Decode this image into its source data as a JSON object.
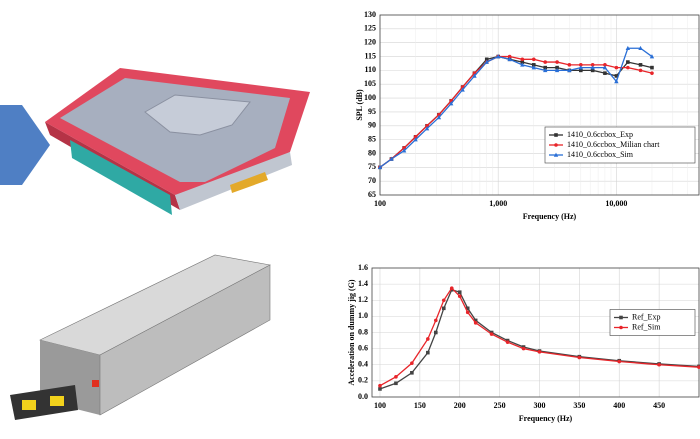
{
  "chart_data": [
    {
      "type": "line",
      "xlabel": "Frequency (Hz)",
      "ylabel": "SPL (dB)",
      "xscale": "log",
      "grid": true,
      "legend": "lower right",
      "x": [
        100,
        125,
        160,
        200,
        250,
        315,
        400,
        500,
        630,
        800,
        1000,
        1250,
        1600,
        2000,
        2500,
        3150,
        4000,
        5000,
        6300,
        8000,
        10000,
        12500,
        16000,
        20000
      ],
      "series": [
        {
          "name": "1410_0.6ccbox_Exp",
          "color": "#333333",
          "marker": "square",
          "values": [
            75,
            78,
            82,
            86,
            90,
            94,
            99,
            104,
            109,
            114,
            115,
            114,
            113,
            112,
            111,
            111,
            110,
            110,
            110,
            109,
            108,
            113,
            112,
            111
          ]
        },
        {
          "name": "1410_0.6ccbox_Milian chart",
          "color": "#e8252a",
          "marker": "circle",
          "values": [
            75,
            78,
            82,
            86,
            90,
            94,
            99,
            104,
            109,
            113,
            115,
            115,
            114,
            114,
            113,
            113,
            112,
            112,
            112,
            112,
            111,
            111,
            110,
            109
          ]
        },
        {
          "name": "1410_0.6ccbox_Sim",
          "color": "#2a6fd6",
          "marker": "triangle",
          "values": [
            75,
            78,
            81,
            85,
            89,
            93,
            98,
            103,
            108,
            113,
            115,
            114,
            112,
            111,
            110,
            110,
            110,
            111,
            111,
            111,
            106,
            118,
            118,
            115
          ]
        }
      ],
      "xlim": [
        100,
        50000
      ],
      "xticks": [
        100,
        {
          "value": 1000,
          "label": "1,000"
        },
        {
          "value": 10000,
          "label": "10,000"
        }
      ],
      "ylim": [
        65,
        130
      ],
      "yticks": [
        65,
        70,
        75,
        80,
        85,
        90,
        95,
        100,
        105,
        110,
        115,
        120,
        125,
        130
      ]
    },
    {
      "type": "line",
      "xlabel": "Frequency (Hz)",
      "ylabel": "Acceleration on dummy jig (G)",
      "xscale": "linear",
      "grid": true,
      "legend": "center right",
      "x": [
        100,
        120,
        140,
        160,
        170,
        180,
        190,
        200,
        210,
        220,
        240,
        260,
        280,
        300,
        350,
        400,
        450,
        500
      ],
      "series": [
        {
          "name": "Ref_Exp",
          "color": "#444444",
          "marker": "square",
          "values": [
            0.1,
            0.17,
            0.3,
            0.55,
            0.8,
            1.1,
            1.33,
            1.3,
            1.1,
            0.95,
            0.8,
            0.7,
            0.62,
            0.57,
            0.5,
            0.45,
            0.41,
            0.38
          ]
        },
        {
          "name": "Ref_Sim",
          "color": "#e8252a",
          "marker": "circle",
          "values": [
            0.14,
            0.25,
            0.42,
            0.72,
            0.95,
            1.2,
            1.35,
            1.25,
            1.05,
            0.92,
            0.78,
            0.68,
            0.6,
            0.56,
            0.49,
            0.44,
            0.4,
            0.37
          ]
        }
      ],
      "xlim": [
        90,
        500
      ],
      "xticks": [
        100,
        150,
        200,
        250,
        300,
        350,
        400,
        450
      ],
      "ylim": [
        0,
        1.6
      ],
      "yticks": [
        {
          "value": 0,
          "label": "0.0"
        },
        {
          "value": 0.2,
          "label": "0.2"
        },
        {
          "value": 0.4,
          "label": "0.4"
        },
        {
          "value": 0.6,
          "label": "0.6"
        },
        {
          "value": 0.8,
          "label": "0.8"
        },
        {
          "value": 1,
          "label": "1.0"
        },
        {
          "value": 1.2,
          "label": "1.2"
        },
        {
          "value": 1.4,
          "label": "1.4"
        },
        {
          "value": 1.6,
          "label": "1.6"
        }
      ]
    }
  ]
}
